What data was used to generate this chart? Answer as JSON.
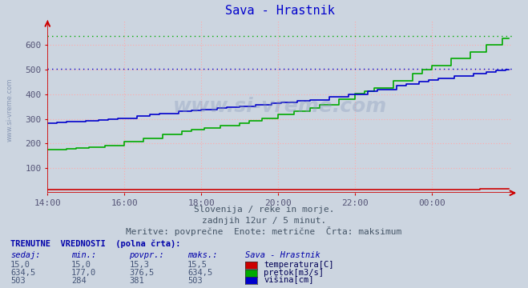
{
  "title": "Sava - Hrastnik",
  "bg_color": "#ccd5e0",
  "plot_bg_color": "#ccd5e0",
  "title_color": "#0000cc",
  "x_labels": [
    "14:00",
    "16:00",
    "18:00",
    "20:00",
    "22:00",
    "00:00"
  ],
  "x_ticks_idx": [
    0,
    24,
    48,
    72,
    96,
    120
  ],
  "n_points": 145,
  "ylim": [
    0,
    700
  ],
  "yticks": [
    100,
    200,
    300,
    400,
    500,
    600
  ],
  "subtitle1": "Slovenija / reke in morje.",
  "subtitle2": "zadnjih 12ur / 5 minut.",
  "subtitle3": "Meritve: povprečne  Enote: metrične  Črta: maksimum",
  "table_header": "TRENUTNE  VREDNOSTI  (polna črta):",
  "col_headers": [
    "sedaj:",
    "min.:",
    "povpr.:",
    "maks.:",
    "Sava - Hrastnik"
  ],
  "row1": [
    "15,0",
    "15,0",
    "15,3",
    "15,5"
  ],
  "row2": [
    "634,5",
    "177,0",
    "376,5",
    "634,5"
  ],
  "row3": [
    "503",
    "284",
    "381",
    "503"
  ],
  "legend_labels": [
    "temperatura[C]",
    "pretok[m3/s]",
    "višina[cm]"
  ],
  "legend_colors": [
    "#cc0000",
    "#00aa00",
    "#0000cc"
  ],
  "temp_min": 15.0,
  "temp_max": 15.5,
  "pretok_min": 177.0,
  "pretok_max": 634.5,
  "visina_min": 284,
  "visina_max": 503,
  "max_pretok_dotted": 634.5,
  "max_visina_dotted": 503,
  "grid_color": "#ffaaaa",
  "axis_color": "#cc0000",
  "tick_color": "#555577",
  "label_color": "#555577",
  "watermark": "www.si-vreme.com"
}
